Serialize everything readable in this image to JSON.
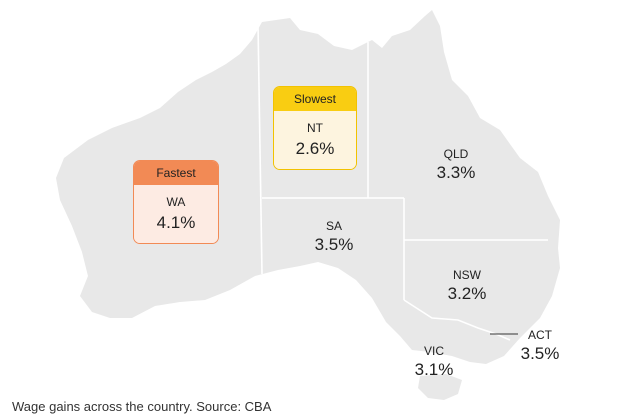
{
  "map": {
    "land_color": "#e8e8e8",
    "border_color": "#ffffff"
  },
  "states": {
    "qld": {
      "name": "QLD",
      "value": "3.3%"
    },
    "sa": {
      "name": "SA",
      "value": "3.5%"
    },
    "nsw": {
      "name": "NSW",
      "value": "3.2%"
    },
    "vic": {
      "name": "VIC",
      "value": "3.1%"
    },
    "act": {
      "name": "ACT",
      "value": "3.5%"
    }
  },
  "callouts": {
    "wa": {
      "heading": "Fastest",
      "name": "WA",
      "value": "4.1%",
      "color": "#f28a55"
    },
    "nt": {
      "heading": "Slowest",
      "name": "NT",
      "value": "2.6%",
      "color": "#f9cd12"
    }
  },
  "caption": "Wage gains across the country. Source: CBA"
}
